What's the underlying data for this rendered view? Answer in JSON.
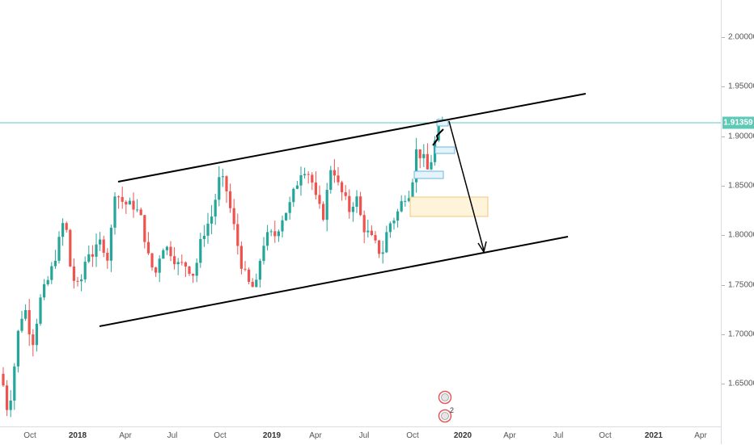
{
  "chart_data": {
    "type": "candlestick",
    "price_axis": {
      "ticks": [
        "2.00000",
        "1.95000",
        "1.90000",
        "1.85000",
        "1.80000",
        "1.75000",
        "1.70000",
        "1.65000"
      ],
      "range": [
        1.6052,
        2.0423
      ]
    },
    "time_axis": {
      "ticks": [
        {
          "label": "Oct",
          "bold": false
        },
        {
          "label": "2018",
          "bold": true
        },
        {
          "label": "Apr",
          "bold": false
        },
        {
          "label": "Jul",
          "bold": false
        },
        {
          "label": "Oct",
          "bold": false
        },
        {
          "label": "2019",
          "bold": true
        },
        {
          "label": "Apr",
          "bold": false
        },
        {
          "label": "Jul",
          "bold": false
        },
        {
          "label": "Oct",
          "bold": false
        },
        {
          "label": "2020",
          "bold": true
        },
        {
          "label": "Apr",
          "bold": false
        },
        {
          "label": "Jul",
          "bold": false
        },
        {
          "label": "Oct",
          "bold": false
        },
        {
          "label": "2021",
          "bold": true
        },
        {
          "label": "Apr",
          "bold": false
        }
      ]
    },
    "last_price": "1.91359",
    "colors": {
      "up": "#26a69a",
      "down": "#ef5350",
      "last_price_line": "#5fc9b8",
      "trendline": "#000000"
    },
    "events_badge_count": "2",
    "annotations": [
      {
        "type": "trendline",
        "desc": "upper channel line"
      },
      {
        "type": "trendline",
        "desc": "lower channel line"
      },
      {
        "type": "arrow",
        "desc": "projected move down to lower channel"
      },
      {
        "type": "zone",
        "desc": "shaded demand zone"
      }
    ]
  }
}
